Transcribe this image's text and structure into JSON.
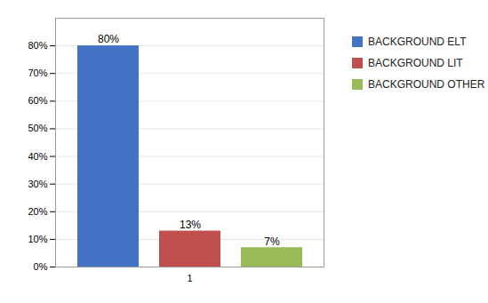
{
  "chart_data": {
    "type": "bar",
    "categories": [
      "1"
    ],
    "series": [
      {
        "name": "BACKGROUND ELT",
        "color": "#4472C4",
        "values": [
          80
        ],
        "value_labels": [
          "80%"
        ]
      },
      {
        "name": "BACKGROUND LIT",
        "color": "#C0504D",
        "values": [
          13
        ],
        "value_labels": [
          "13%"
        ]
      },
      {
        "name": "BACKGROUND OTHER",
        "color": "#9BBB59",
        "values": [
          7
        ],
        "value_labels": [
          "7%"
        ]
      }
    ],
    "ylim": [
      0,
      90
    ],
    "yticks": [
      {
        "value": 0,
        "label": "0%"
      },
      {
        "value": 10,
        "label": "10%"
      },
      {
        "value": 20,
        "label": "20%"
      },
      {
        "value": 30,
        "label": "30%"
      },
      {
        "value": 40,
        "label": "40%"
      },
      {
        "value": 50,
        "label": "50%"
      },
      {
        "value": 60,
        "label": "60%"
      },
      {
        "value": 70,
        "label": "70%"
      },
      {
        "value": 80,
        "label": "80%"
      }
    ],
    "grid": true,
    "legend": "right",
    "data_labels": true
  }
}
